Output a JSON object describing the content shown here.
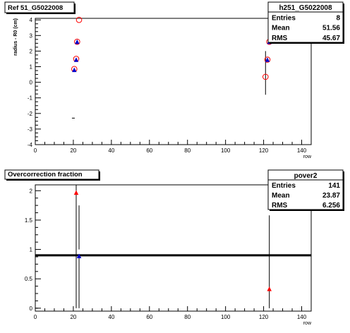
{
  "chart_data": [
    {
      "type": "scatter",
      "title": "Ref 51_G5022008",
      "xlabel": "row",
      "ylabel": "radius - R0 (cm)",
      "xlim": [
        0,
        145
      ],
      "ylim": [
        -4,
        4.1
      ],
      "x_ticks": [
        0,
        20,
        40,
        60,
        80,
        100,
        120,
        140
      ],
      "y_ticks": [
        -4,
        -3,
        -2,
        -1,
        0,
        1,
        2,
        3,
        4
      ],
      "stats": {
        "name": "h251_G5022008",
        "rows": [
          {
            "label": "Entries",
            "value": "8"
          },
          {
            "label": "Mean",
            "value": "51.56"
          },
          {
            "label": "RMS",
            "value": "45.67"
          }
        ]
      },
      "series": [
        {
          "marker": "open-circle",
          "color": "#ff0000",
          "points": [
            [
              23,
              4.0
            ],
            [
              22,
              2.6
            ],
            [
              21.5,
              1.5
            ],
            [
              20.5,
              0.85
            ],
            [
              121,
              0.35
            ],
            [
              122,
              1.45
            ],
            [
              123,
              2.6
            ]
          ]
        },
        {
          "marker": "filled-triangle",
          "color": "#0000cc",
          "points": [
            [
              22,
              2.6
            ],
            [
              21.5,
              1.45
            ],
            [
              20.5,
              0.8
            ],
            [
              122,
              1.45
            ],
            [
              123,
              2.6
            ]
          ]
        }
      ],
      "error_bars": [
        {
          "x": 121,
          "low": -0.8,
          "high": 2.0
        }
      ],
      "lone_marks": [
        {
          "x": 20,
          "y": -2.3
        }
      ]
    },
    {
      "type": "scatter",
      "title": "Overcorrection fraction",
      "xlabel": "row",
      "ylabel": "",
      "xlim": [
        0,
        145
      ],
      "ylim": [
        -0.05,
        2.1
      ],
      "x_ticks": [
        0,
        20,
        40,
        60,
        80,
        100,
        120,
        140
      ],
      "y_ticks": [
        0,
        0.5,
        1,
        1.5,
        2
      ],
      "stats": {
        "name": "pover2",
        "rows": [
          {
            "label": "Entries",
            "value": "141"
          },
          {
            "label": "Mean",
            "value": "23.87"
          },
          {
            "label": "RMS",
            "value": "6.256"
          }
        ]
      },
      "series": [
        {
          "marker": "filled-triangle",
          "color": "#ff0000",
          "points": [
            [
              21.5,
              1.97
            ],
            [
              123,
              0.33
            ]
          ]
        },
        {
          "marker": "filled-triangle",
          "color": "#0000cc",
          "points": [
            [
              23,
              0.89
            ]
          ]
        }
      ],
      "error_bars": [
        {
          "x": 21.5,
          "low": 0,
          "high": 2.1
        },
        {
          "x": 23,
          "low": 1.0,
          "high": 1.75
        },
        {
          "x": 23,
          "low": 0,
          "high": 0.9
        },
        {
          "x": 123,
          "low": 0,
          "high": 1.58
        }
      ],
      "reference_line": {
        "y": 0.9,
        "color": "#000000"
      }
    }
  ]
}
